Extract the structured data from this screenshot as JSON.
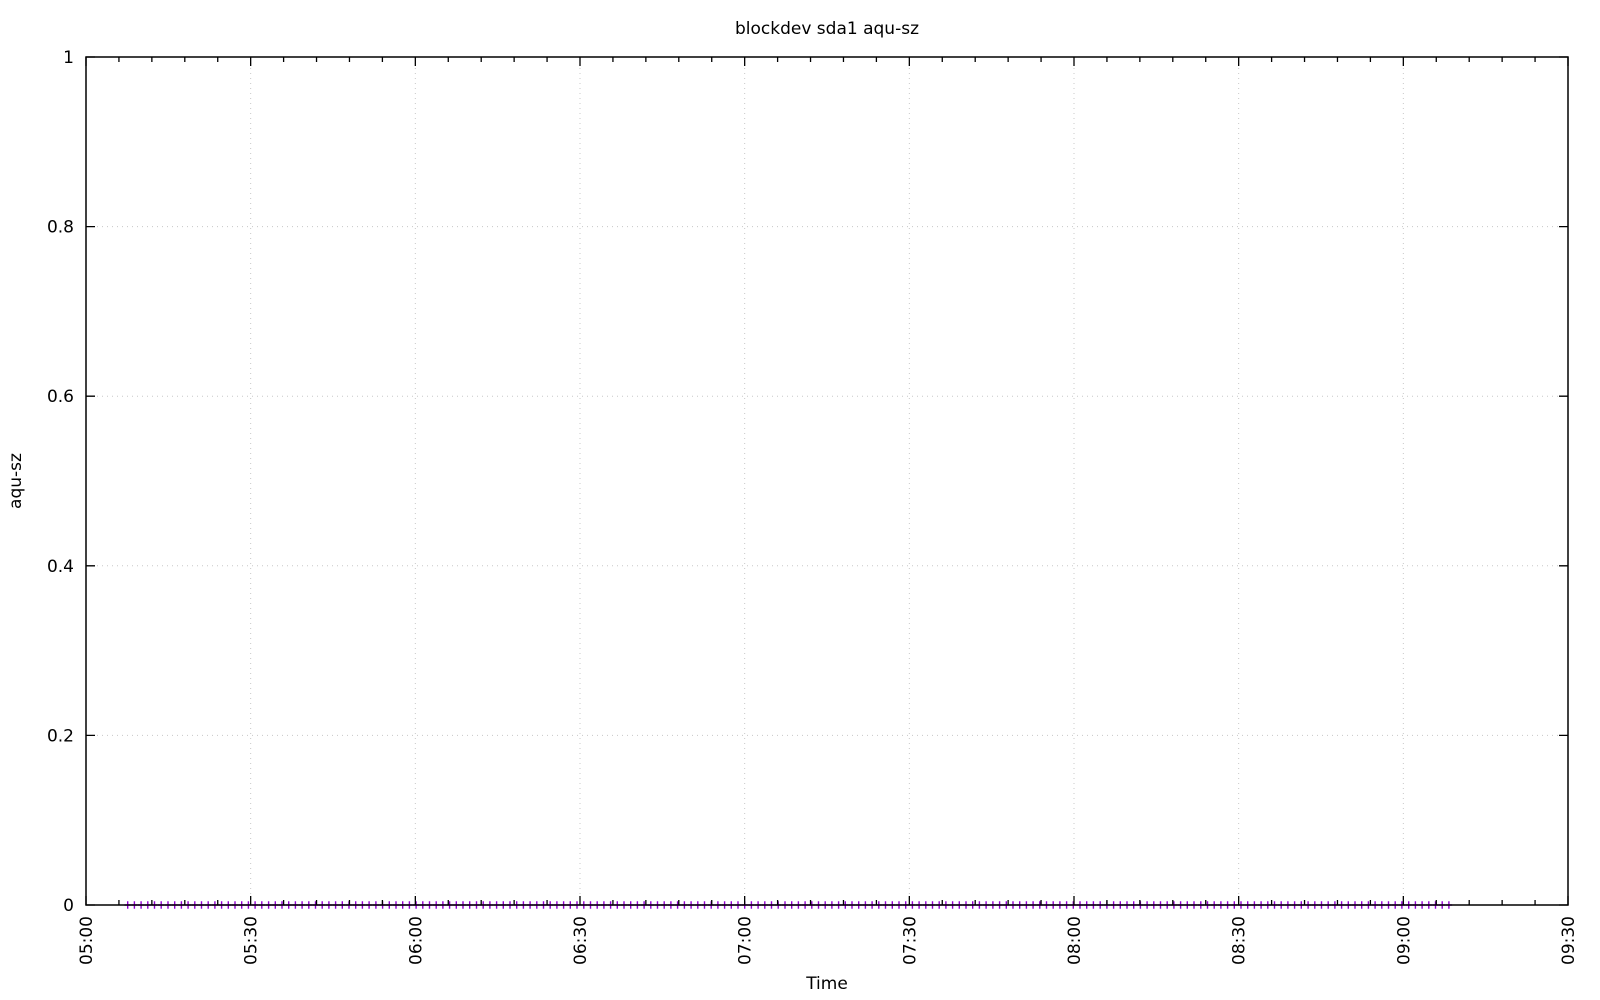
{
  "page": {
    "background_color": "#ffffff"
  },
  "chart_data": {
    "type": "scatter",
    "title": "blockdev sda1 aqu-sz",
    "xlabel": "Time",
    "ylabel": "aqu-sz",
    "x_axis": {
      "tick_labels": [
        "05:00",
        "05:30",
        "06:00",
        "06:30",
        "07:00",
        "07:30",
        "08:00",
        "08:30",
        "09:00",
        "09:30"
      ],
      "tick_minutes": [
        300,
        330,
        360,
        390,
        420,
        450,
        480,
        510,
        540,
        570
      ],
      "range_minutes": [
        300,
        570
      ],
      "minor_tick_interval_minutes": 6,
      "labels_rotated_degrees": -90
    },
    "y_axis": {
      "tick_labels": [
        "0",
        "0.2",
        "0.4",
        "0.6",
        "0.8",
        "1"
      ],
      "tick_values": [
        0,
        0.2,
        0.4,
        0.6,
        0.8,
        1
      ],
      "range": [
        0,
        1
      ]
    },
    "grid": {
      "show": true,
      "style": "dotted",
      "color": "#c8c8c8"
    },
    "legend": {
      "visible": false
    },
    "series": [
      {
        "name": "aqu-sz",
        "marker": "plus",
        "color": "#9400d3",
        "y_constant": 0,
        "start_time": "05:08",
        "end_time": "09:08",
        "start_minutes": 307.6,
        "end_minutes": 548.3,
        "point_count": 198
      }
    ],
    "axis_color": "#000000",
    "text_color": "#000000"
  }
}
